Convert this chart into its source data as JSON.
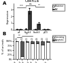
{
  "title_a": "Cdkn1a",
  "panel_a_label": "A",
  "panel_b_label": "B",
  "groups_a": [
    "wt",
    "Foxe3",
    "Foxe3;\np53",
    "p53"
  ],
  "posterior_a": [
    0.08,
    0.12,
    0.1,
    0.09
  ],
  "nic_a": [
    0.06,
    2.8,
    0.9,
    0.07
  ],
  "err_posterior_a": [
    0.01,
    0.02,
    0.015,
    0.01
  ],
  "err_nic_a": [
    0.01,
    0.4,
    0.15,
    0.01
  ],
  "ylabel_a": "Expression",
  "color_posterior": "#ffffff",
  "color_nic": "#333333",
  "surviving_b": [
    98,
    15,
    95,
    90,
    88,
    82,
    95
  ],
  "apoptotic_b": [
    2,
    85,
    5,
    10,
    12,
    18,
    5
  ],
  "ylabel_b": "% of animals",
  "color_surviving": "#ffffff",
  "color_apoptotic": "#555555",
  "sig_labels_a": [
    "***",
    "ns",
    "**"
  ],
  "sig_labels_b": [
    "**",
    "**"
  ],
  "n_labels_b": [
    "n=15",
    "n=31",
    "n=11",
    "n=13",
    "n=16",
    "n=10",
    "n=21"
  ],
  "legend_a": [
    "Posterior",
    "NIC"
  ],
  "legend_b": [
    "Surviving",
    "Apoptotic"
  ]
}
